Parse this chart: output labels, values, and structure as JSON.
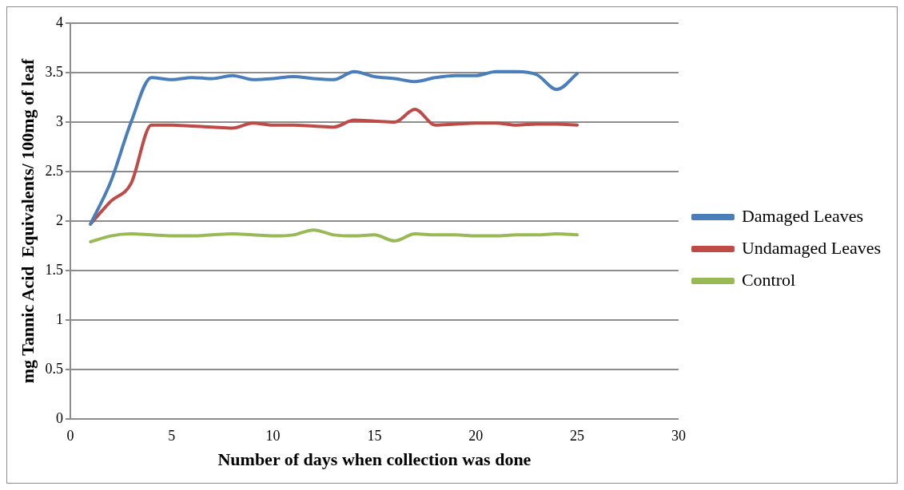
{
  "chart_data": {
    "type": "line",
    "xlabel": "Number of days when collection was done",
    "ylabel": "mg Tannic Acid  Equivalents/ 100mg of leaf",
    "x": [
      1,
      2,
      3,
      4,
      5,
      6,
      7,
      8,
      9,
      10,
      11,
      12,
      13,
      14,
      15,
      16,
      17,
      18,
      19,
      20,
      21,
      22,
      23,
      24,
      25
    ],
    "series": [
      {
        "name": "Damaged Leaves",
        "color": "#4a7ebb",
        "values": [
          1.97,
          2.4,
          3.0,
          3.45,
          3.43,
          3.45,
          3.44,
          3.47,
          3.43,
          3.44,
          3.46,
          3.44,
          3.43,
          3.51,
          3.46,
          3.44,
          3.41,
          3.45,
          3.47,
          3.47,
          3.51,
          3.51,
          3.48,
          3.33,
          3.49
        ]
      },
      {
        "name": "Undamaged Leaves",
        "color": "#be4b48",
        "values": [
          1.97,
          2.2,
          2.38,
          2.97,
          2.97,
          2.96,
          2.95,
          2.94,
          2.99,
          2.97,
          2.97,
          2.96,
          2.95,
          3.02,
          3.01,
          3.0,
          3.13,
          2.97,
          2.98,
          2.99,
          2.99,
          2.97,
          2.98,
          2.98,
          2.97
        ]
      },
      {
        "name": "Control",
        "color": "#98b954",
        "values": [
          1.79,
          1.85,
          1.87,
          1.86,
          1.85,
          1.85,
          1.86,
          1.87,
          1.86,
          1.85,
          1.86,
          1.91,
          1.86,
          1.85,
          1.86,
          1.8,
          1.87,
          1.86,
          1.86,
          1.85,
          1.85,
          1.86,
          1.86,
          1.87,
          1.86
        ]
      }
    ],
    "xlim": [
      0,
      30
    ],
    "xticks": [
      0,
      5,
      10,
      15,
      20,
      25,
      30
    ],
    "ylim": [
      0,
      4
    ],
    "yticks": [
      0,
      0.5,
      1,
      1.5,
      2,
      2.5,
      3,
      3.5,
      4
    ],
    "grid": "y",
    "legend": "right",
    "marker": "none",
    "line_style": "solid"
  }
}
